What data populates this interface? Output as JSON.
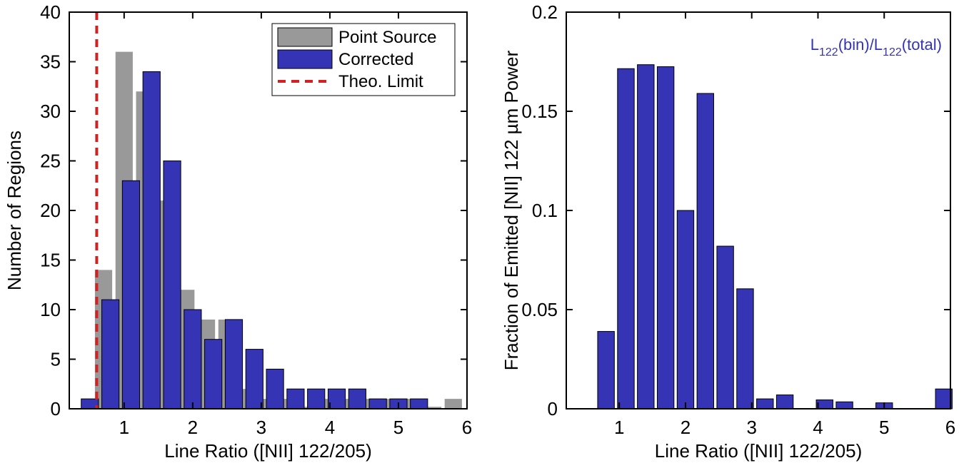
{
  "chart_data": [
    {
      "type": "bar",
      "xlabel": "Line Ratio ([NII] 122/205)",
      "ylabel": "Number of Regions",
      "xlim": [
        0.2,
        6
      ],
      "ylim": [
        0,
        40
      ],
      "xticks": [
        1,
        2,
        3,
        4,
        5,
        6
      ],
      "yticks": [
        0,
        5,
        10,
        15,
        20,
        25,
        30,
        35,
        40
      ],
      "bin_width": 0.3,
      "series": [
        {
          "name": "Point Source",
          "color": "#999999",
          "bins": [
            {
              "x": 0.7,
              "value": 14
            },
            {
              "x": 1.0,
              "value": 36
            },
            {
              "x": 1.3,
              "value": 32
            },
            {
              "x": 1.6,
              "value": 21
            },
            {
              "x": 1.9,
              "value": 12
            },
            {
              "x": 2.2,
              "value": 9
            },
            {
              "x": 2.5,
              "value": 9
            },
            {
              "x": 2.8,
              "value": 2
            },
            {
              "x": 3.1,
              "value": 1
            },
            {
              "x": 3.4,
              "value": 1
            },
            {
              "x": 3.7,
              "value": 0.2
            },
            {
              "x": 4.0,
              "value": 1
            },
            {
              "x": 4.3,
              "value": 1
            },
            {
              "x": 4.6,
              "value": 1
            },
            {
              "x": 4.9,
              "value": 1
            },
            {
              "x": 5.2,
              "value": 1
            },
            {
              "x": 5.5,
              "value": 0.2
            },
            {
              "x": 5.8,
              "value": 1
            }
          ]
        },
        {
          "name": "Corrected",
          "color": "#3434b4",
          "bins": [
            {
              "x": 0.5,
              "value": 1
            },
            {
              "x": 0.8,
              "value": 11
            },
            {
              "x": 1.1,
              "value": 23
            },
            {
              "x": 1.4,
              "value": 34
            },
            {
              "x": 1.7,
              "value": 25
            },
            {
              "x": 2.0,
              "value": 10
            },
            {
              "x": 2.3,
              "value": 7
            },
            {
              "x": 2.6,
              "value": 9
            },
            {
              "x": 2.9,
              "value": 6
            },
            {
              "x": 3.2,
              "value": 4
            },
            {
              "x": 3.5,
              "value": 2
            },
            {
              "x": 3.8,
              "value": 2
            },
            {
              "x": 4.1,
              "value": 2
            },
            {
              "x": 4.4,
              "value": 2
            },
            {
              "x": 4.7,
              "value": 1
            },
            {
              "x": 5.0,
              "value": 1
            },
            {
              "x": 5.3,
              "value": 1
            }
          ]
        }
      ],
      "vline": {
        "name": "Theo. Limit",
        "x": 0.6,
        "color": "#d42020",
        "style": "dashed"
      },
      "legend": {
        "position": "top-right",
        "entries": [
          "Point Source",
          "Corrected",
          "Theo. Limit"
        ]
      }
    },
    {
      "type": "bar",
      "xlabel": "Line Ratio ([NII] 122/205)",
      "ylabel": "Fraction of Emitted [NII] 122 µm Power",
      "xlim": [
        0.2,
        6
      ],
      "ylim": [
        0,
        0.2
      ],
      "xticks": [
        1,
        2,
        3,
        4,
        5,
        6
      ],
      "yticks": [
        0,
        0.05,
        0.1,
        0.15,
        0.2
      ],
      "bin_width": 0.3,
      "annotation": {
        "main": "L",
        "sub1": "122",
        "mid": "(bin)/L",
        "sub2": "122",
        "end": "(total)",
        "color": "#3434b4"
      },
      "series": [
        {
          "color": "#3434b4",
          "bins": [
            {
              "x": 0.8,
              "value": 0.039
            },
            {
              "x": 1.1,
              "value": 0.1715
            },
            {
              "x": 1.4,
              "value": 0.1735
            },
            {
              "x": 1.7,
              "value": 0.1725
            },
            {
              "x": 2.0,
              "value": 0.1
            },
            {
              "x": 2.3,
              "value": 0.159
            },
            {
              "x": 2.6,
              "value": 0.082
            },
            {
              "x": 2.9,
              "value": 0.0605
            },
            {
              "x": 3.2,
              "value": 0.005
            },
            {
              "x": 3.5,
              "value": 0.007
            },
            {
              "x": 4.1,
              "value": 0.0045
            },
            {
              "x": 4.4,
              "value": 0.0035
            },
            {
              "x": 5.0,
              "value": 0.003
            },
            {
              "x": 5.9,
              "value": 0.01
            }
          ]
        }
      ]
    }
  ]
}
